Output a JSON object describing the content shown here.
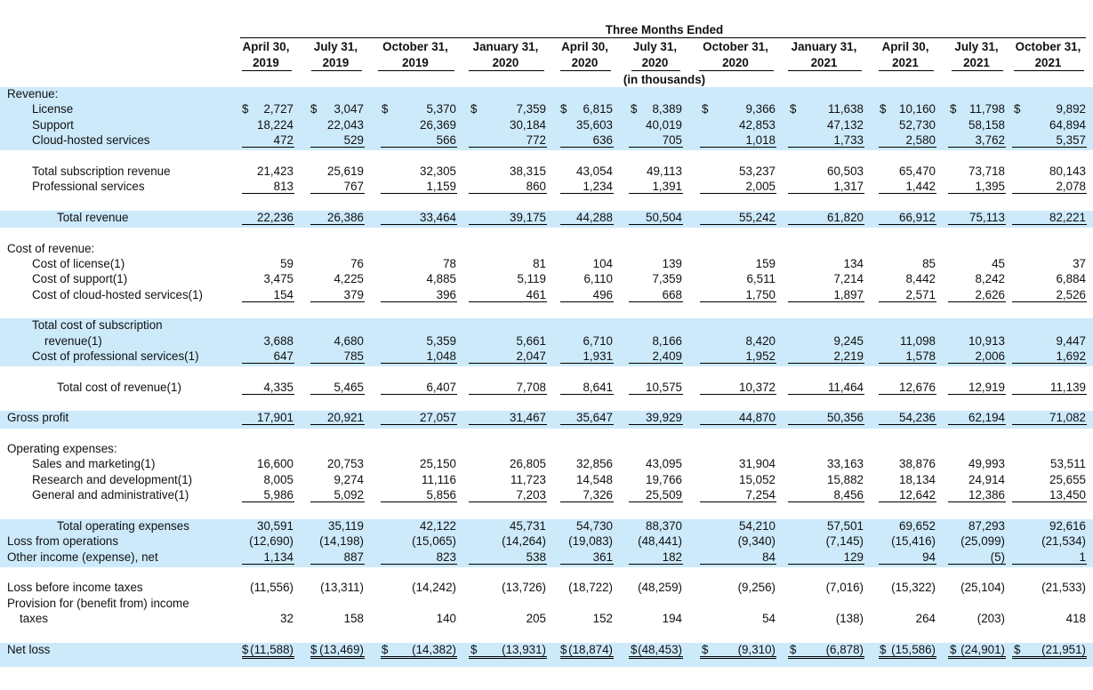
{
  "header": {
    "period_title": "Three Months Ended",
    "unit_note": "(in thousands)",
    "columns": [
      {
        "month": "April 30,",
        "year": "2019"
      },
      {
        "month": "July 31,",
        "year": "2019"
      },
      {
        "month": "October 31,",
        "year": "2019"
      },
      {
        "month": "January 31,",
        "year": "2020"
      },
      {
        "month": "April 30,",
        "year": "2020"
      },
      {
        "month": "July 31,",
        "year": "2020"
      },
      {
        "month": "October 31,",
        "year": "2020"
      },
      {
        "month": "January 31,",
        "year": "2021"
      },
      {
        "month": "April 30,",
        "year": "2021"
      },
      {
        "month": "July 31,",
        "year": "2021"
      },
      {
        "month": "October 31,",
        "year": "2021"
      }
    ]
  },
  "currency_symbol": "$",
  "rows": [
    {
      "label": "Revenue:"
    },
    {
      "label": "License",
      "indent": 1,
      "dollar": true,
      "values": [
        "2,727",
        "3,047",
        "5,370",
        "7,359",
        "6,815",
        "8,389",
        "9,366",
        "11,638",
        "10,160",
        "11,798",
        "9,892"
      ]
    },
    {
      "label": "Support",
      "indent": 1,
      "values": [
        "18,224",
        "22,043",
        "26,369",
        "30,184",
        "35,603",
        "40,019",
        "42,853",
        "47,132",
        "52,730",
        "58,158",
        "64,894"
      ]
    },
    {
      "label": "Cloud-hosted services",
      "indent": 1,
      "underline": true,
      "values": [
        "472",
        "529",
        "566",
        "772",
        "636",
        "705",
        "1,018",
        "1,733",
        "2,580",
        "3,762",
        "5,357"
      ]
    },
    {
      "spacer": true
    },
    {
      "label": "Total subscription revenue",
      "indent": 1,
      "values": [
        "21,423",
        "25,619",
        "32,305",
        "38,315",
        "43,054",
        "49,113",
        "53,237",
        "60,503",
        "65,470",
        "73,718",
        "80,143"
      ]
    },
    {
      "label": "Professional services",
      "indent": 1,
      "underline": true,
      "values": [
        "813",
        "767",
        "1,159",
        "860",
        "1,234",
        "1,391",
        "2,005",
        "1,317",
        "1,442",
        "1,395",
        "2,078"
      ]
    },
    {
      "spacer": true
    },
    {
      "label": "Total revenue",
      "indent": 2,
      "underline": true,
      "values": [
        "22,236",
        "26,386",
        "33,464",
        "39,175",
        "44,288",
        "50,504",
        "55,242",
        "61,820",
        "66,912",
        "75,113",
        "82,221"
      ]
    },
    {
      "spacer": true
    },
    {
      "label": "Cost of revenue:"
    },
    {
      "label": "Cost of license(1)",
      "indent": 1,
      "values": [
        "59",
        "76",
        "78",
        "81",
        "104",
        "139",
        "159",
        "134",
        "85",
        "45",
        "37"
      ]
    },
    {
      "label": "Cost of support(1)",
      "indent": 1,
      "values": [
        "3,475",
        "4,225",
        "4,885",
        "5,119",
        "6,110",
        "7,359",
        "6,511",
        "7,214",
        "8,442",
        "8,242",
        "6,884"
      ]
    },
    {
      "label": "Cost of cloud-hosted services(1)",
      "indent": 1,
      "underline": true,
      "values": [
        "154",
        "379",
        "396",
        "461",
        "496",
        "668",
        "1,750",
        "1,897",
        "2,571",
        "2,626",
        "2,526"
      ]
    },
    {
      "spacer": true
    },
    {
      "label": "Total cost of subscription",
      "label2": "revenue(1)",
      "indent": 1,
      "values": [
        "3,688",
        "4,680",
        "5,359",
        "5,661",
        "6,710",
        "8,166",
        "8,420",
        "9,245",
        "11,098",
        "10,913",
        "9,447"
      ]
    },
    {
      "label": "Cost of professional services(1)",
      "indent": 1,
      "underline": true,
      "values": [
        "647",
        "785",
        "1,048",
        "2,047",
        "1,931",
        "2,409",
        "1,952",
        "2,219",
        "1,578",
        "2,006",
        "1,692"
      ]
    },
    {
      "spacer": true
    },
    {
      "label": "Total cost of revenue(1)",
      "indent": 2,
      "underline": true,
      "values": [
        "4,335",
        "5,465",
        "6,407",
        "7,708",
        "8,641",
        "10,575",
        "10,372",
        "11,464",
        "12,676",
        "12,919",
        "11,139"
      ]
    },
    {
      "spacer": true
    },
    {
      "label": "Gross profit",
      "underline": true,
      "values": [
        "17,901",
        "20,921",
        "27,057",
        "31,467",
        "35,647",
        "39,929",
        "44,870",
        "50,356",
        "54,236",
        "62,194",
        "71,082"
      ]
    },
    {
      "spacer": true
    },
    {
      "label": "Operating expenses:"
    },
    {
      "label": "Sales and marketing(1)",
      "indent": 1,
      "values": [
        "16,600",
        "20,753",
        "25,150",
        "26,805",
        "32,856",
        "43,095",
        "31,904",
        "33,163",
        "38,876",
        "49,993",
        "53,511"
      ]
    },
    {
      "label": "Research and development(1)",
      "indent": 1,
      "values": [
        "8,005",
        "9,274",
        "11,116",
        "11,723",
        "14,548",
        "19,766",
        "15,052",
        "15,882",
        "18,134",
        "24,914",
        "25,655"
      ]
    },
    {
      "label": "General and administrative(1)",
      "indent": 1,
      "underline": true,
      "values": [
        "5,986",
        "5,092",
        "5,856",
        "7,203",
        "7,326",
        "25,509",
        "7,254",
        "8,456",
        "12,642",
        "12,386",
        "13,450"
      ]
    },
    {
      "spacer": true
    },
    {
      "label": "Total operating expenses",
      "indent": 2,
      "values": [
        "30,591",
        "35,119",
        "42,122",
        "45,731",
        "54,730",
        "88,370",
        "54,210",
        "57,501",
        "69,652",
        "87,293",
        "92,616"
      ]
    },
    {
      "label": "Loss from operations",
      "values": [
        "(12,690)",
        "(14,198)",
        "(15,065)",
        "(14,264)",
        "(19,083)",
        "(48,441)",
        "(9,340)",
        "(7,145)",
        "(15,416)",
        "(25,099)",
        "(21,534)"
      ]
    },
    {
      "label": "Other income (expense), net",
      "underline": true,
      "values": [
        "1,134",
        "887",
        "823",
        "538",
        "361",
        "182",
        "84",
        "129",
        "94",
        "(5)",
        "1"
      ]
    },
    {
      "spacer": true
    },
    {
      "label": "Loss before income taxes",
      "values": [
        "(11,556)",
        "(13,311)",
        "(14,242)",
        "(13,726)",
        "(18,722)",
        "(48,259)",
        "(9,256)",
        "(7,016)",
        "(15,322)",
        "(25,104)",
        "(21,533)"
      ]
    },
    {
      "label": "Provision for (benefit from) income",
      "label2": "taxes",
      "values": [
        "32",
        "158",
        "140",
        "205",
        "152",
        "194",
        "54",
        "(138)",
        "264",
        "(203)",
        "418"
      ]
    },
    {
      "spacer": true
    },
    {
      "label": "Net loss",
      "dollar": true,
      "double": true,
      "values": [
        "(11,588)",
        "(13,469)",
        "(14,382)",
        "(13,931)",
        "(18,874)",
        "(48,453)",
        "(9,310)",
        "(6,878)",
        "(15,586)",
        "(24,901)",
        "(21,951)"
      ]
    }
  ]
}
